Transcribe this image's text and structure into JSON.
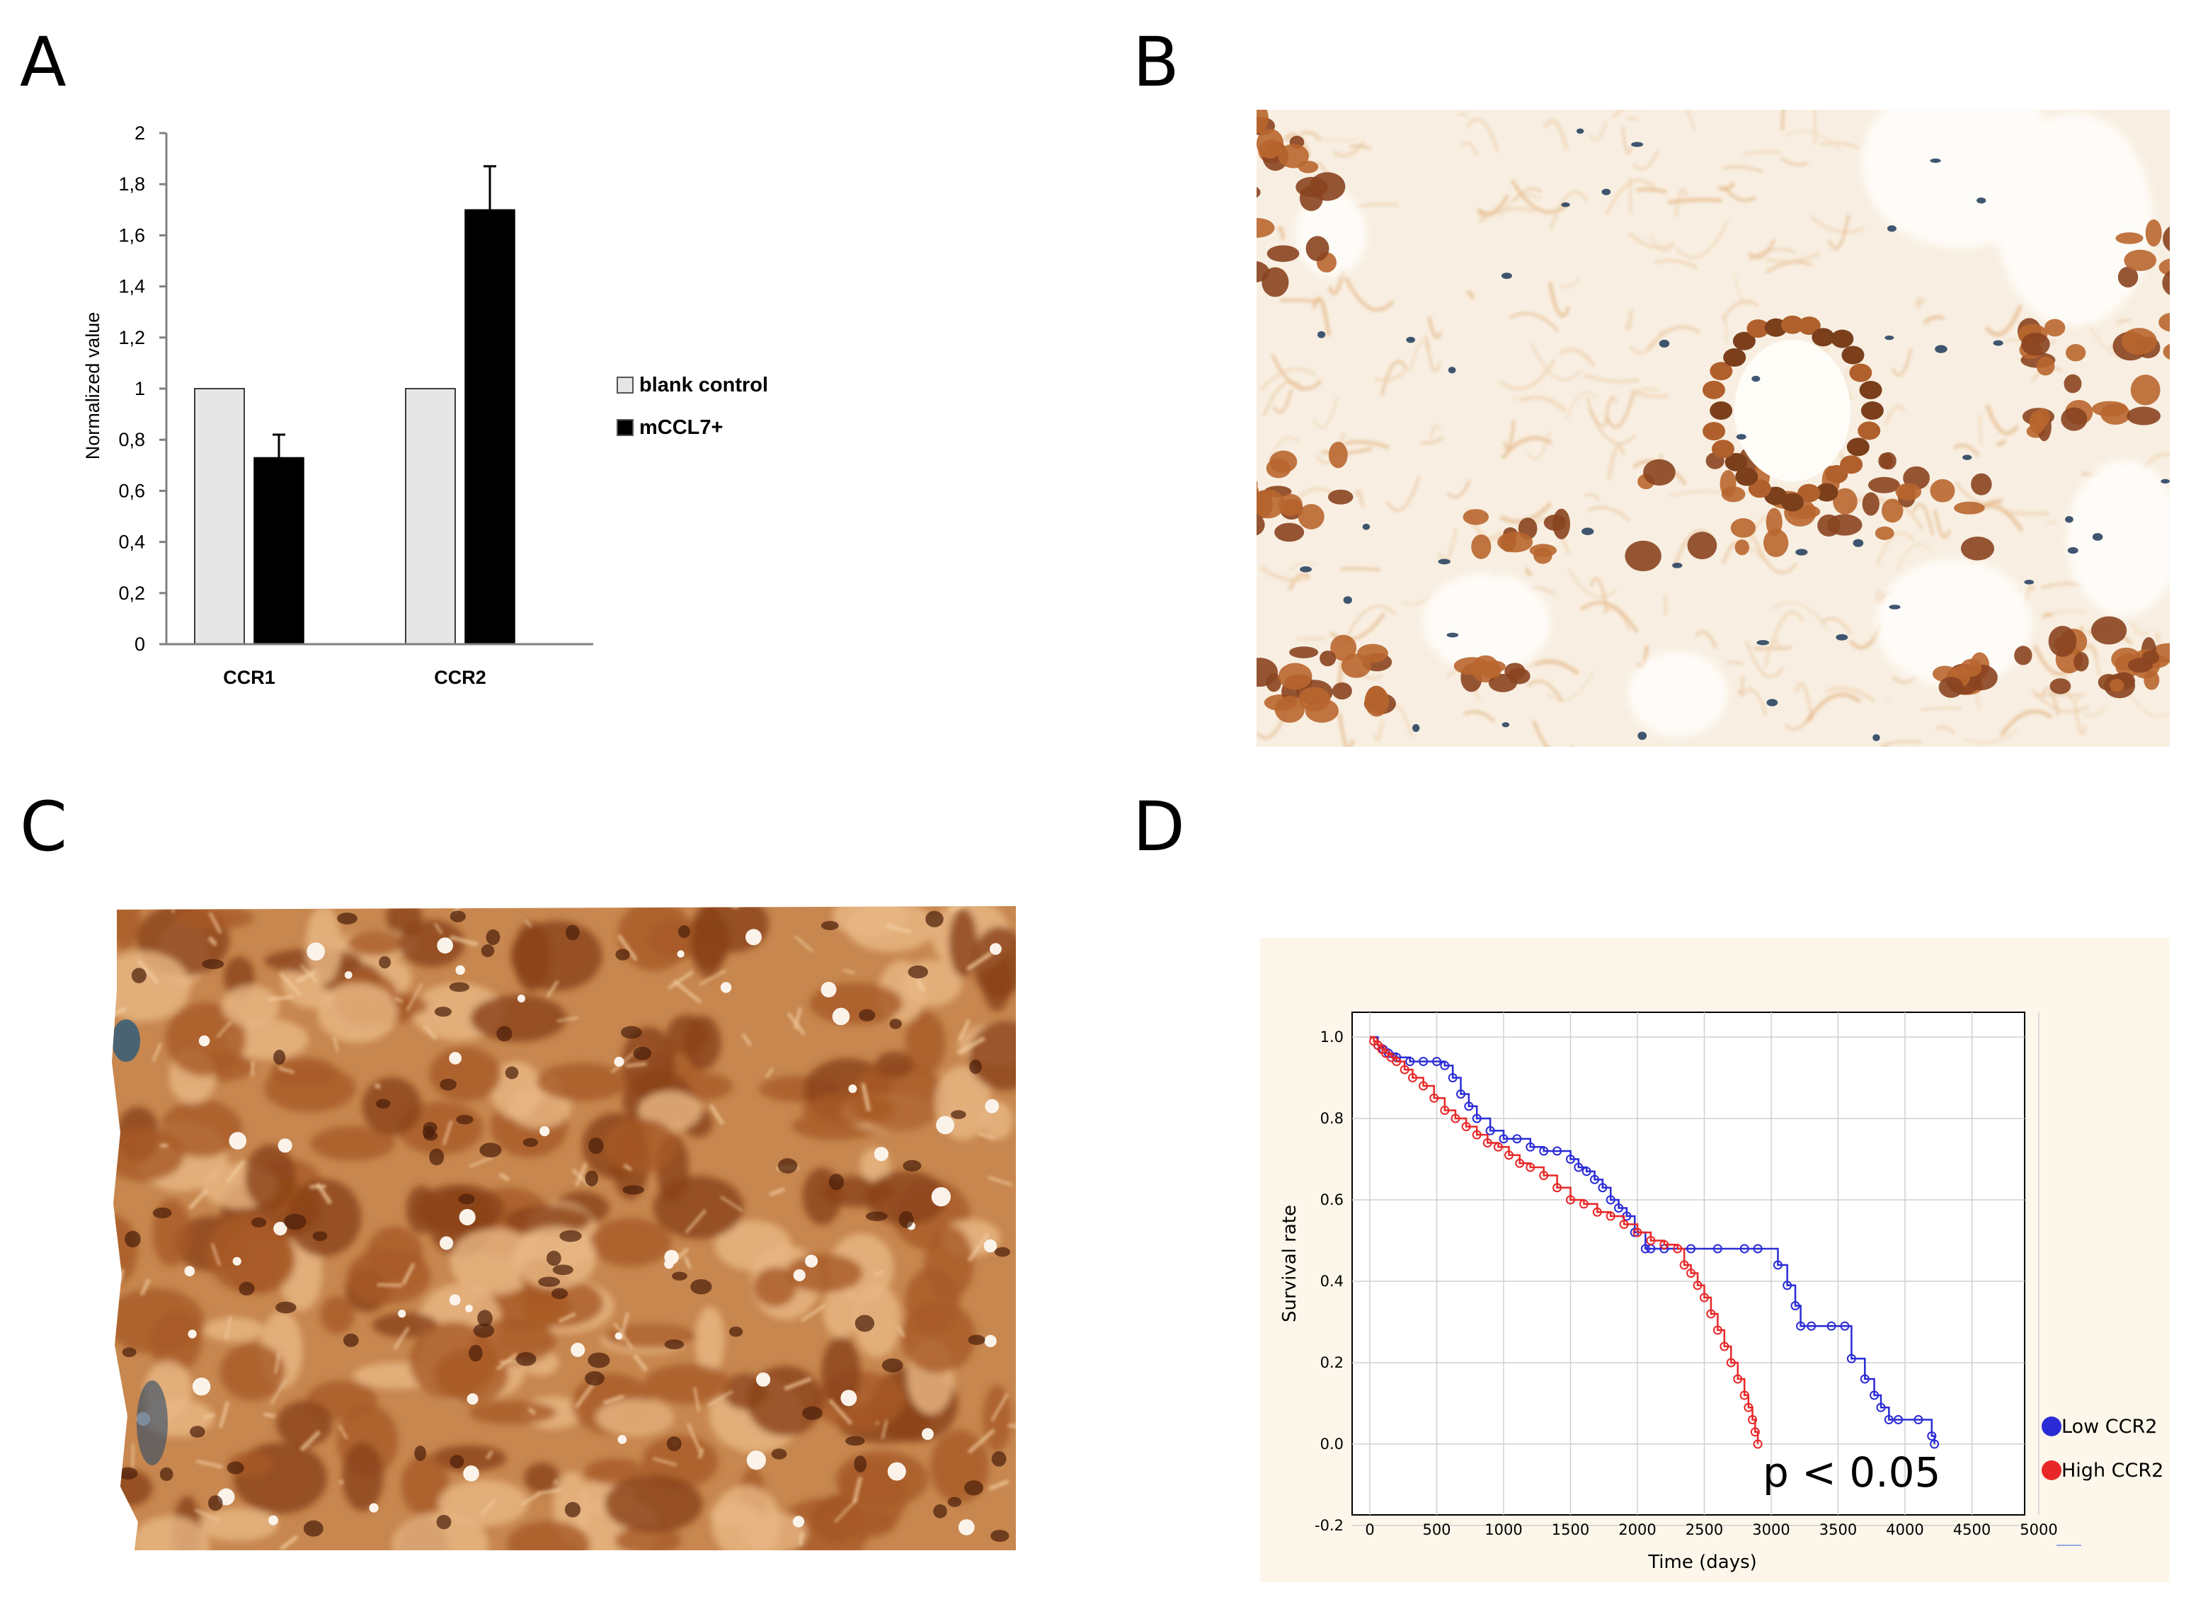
{
  "panel_labels": {
    "a": "A",
    "b": "B",
    "c": "C",
    "d": "D"
  },
  "chart_data": [
    {
      "type": "bar",
      "panel": "A",
      "categories": [
        "CCR1",
        "CCR2"
      ],
      "series": [
        {
          "name": "blank control",
          "values": [
            1.0,
            1.0
          ],
          "color": "#e6e6e6"
        },
        {
          "name": "mCCL7+",
          "values": [
            0.73,
            1.7
          ],
          "errors": [
            0.09,
            0.17
          ],
          "color": "#000000"
        }
      ],
      "ylabel": "Normalized value",
      "ylim": [
        0,
        2
      ],
      "yticks": [
        "0",
        "0,2",
        "0,4",
        "0,6",
        "0,8",
        "1",
        "1,2",
        "1,4",
        "1,6",
        "1,8",
        "2"
      ],
      "grid": false,
      "legend": "right"
    },
    {
      "type": "line",
      "panel": "D",
      "xlabel": "Time (days)",
      "ylabel": "Survival rate",
      "xlim": [
        0,
        5000
      ],
      "ylim": [
        -0.2,
        1.0
      ],
      "xticks": [
        "0",
        "500",
        "1000",
        "1500",
        "2000",
        "2500",
        "3000",
        "3500",
        "4000",
        "4500",
        "5000"
      ],
      "yticks": [
        "-0.2",
        "0.0",
        "0.2",
        "0.4",
        "0.6",
        "0.8",
        "1.0"
      ],
      "grid": true,
      "legend": "right",
      "annotation": "p < 0.05",
      "series": [
        {
          "name": "Low CCR2",
          "color": "#2b2bd6",
          "x": [
            0,
            60,
            100,
            140,
            200,
            300,
            400,
            500,
            560,
            620,
            680,
            740,
            800,
            900,
            1000,
            1100,
            1200,
            1300,
            1400,
            1500,
            1560,
            1620,
            1680,
            1740,
            1800,
            1860,
            1920,
            1980,
            2060,
            2100,
            2200,
            2400,
            2600,
            2800,
            2900,
            3050,
            3120,
            3180,
            3220,
            3300,
            3450,
            3550,
            3600,
            3700,
            3770,
            3820,
            3880,
            3950,
            4100,
            4200,
            4220
          ],
          "y": [
            1.0,
            0.98,
            0.97,
            0.96,
            0.95,
            0.94,
            0.94,
            0.94,
            0.93,
            0.9,
            0.86,
            0.83,
            0.8,
            0.77,
            0.75,
            0.75,
            0.73,
            0.72,
            0.72,
            0.7,
            0.68,
            0.67,
            0.65,
            0.63,
            0.6,
            0.58,
            0.56,
            0.52,
            0.48,
            0.48,
            0.48,
            0.48,
            0.48,
            0.48,
            0.48,
            0.44,
            0.39,
            0.34,
            0.29,
            0.29,
            0.29,
            0.29,
            0.21,
            0.16,
            0.12,
            0.09,
            0.06,
            0.06,
            0.06,
            0.02,
            0.0
          ]
        },
        {
          "name": "High CCR2",
          "color": "#e82828",
          "x": [
            0,
            30,
            60,
            90,
            120,
            160,
            200,
            260,
            320,
            400,
            480,
            560,
            640,
            720,
            800,
            880,
            960,
            1040,
            1120,
            1200,
            1300,
            1400,
            1500,
            1600,
            1700,
            1800,
            1900,
            2000,
            2100,
            2200,
            2300,
            2350,
            2400,
            2450,
            2500,
            2550,
            2600,
            2650,
            2700,
            2750,
            2800,
            2830,
            2860,
            2880,
            2900
          ],
          "y": [
            1.0,
            0.99,
            0.98,
            0.97,
            0.96,
            0.95,
            0.94,
            0.92,
            0.9,
            0.88,
            0.85,
            0.82,
            0.8,
            0.78,
            0.76,
            0.74,
            0.73,
            0.71,
            0.69,
            0.68,
            0.66,
            0.63,
            0.6,
            0.59,
            0.57,
            0.56,
            0.54,
            0.52,
            0.5,
            0.49,
            0.48,
            0.44,
            0.42,
            0.39,
            0.36,
            0.32,
            0.28,
            0.24,
            0.2,
            0.16,
            0.12,
            0.09,
            0.06,
            0.03,
            0.0
          ]
        }
      ]
    }
  ],
  "micrographs": {
    "b": {
      "stain": "sparse brown IHC over pale stroma",
      "base": "#f7eee3"
    },
    "c": {
      "stain": "dense brown IHC",
      "base": "#c98a55"
    }
  },
  "colors": {
    "panel_d_bg": "#fcf7ea",
    "brown_dark": "#7b3f1c",
    "brown_mid": "#b86a33",
    "hematoxylin": "#1f3a5a"
  }
}
